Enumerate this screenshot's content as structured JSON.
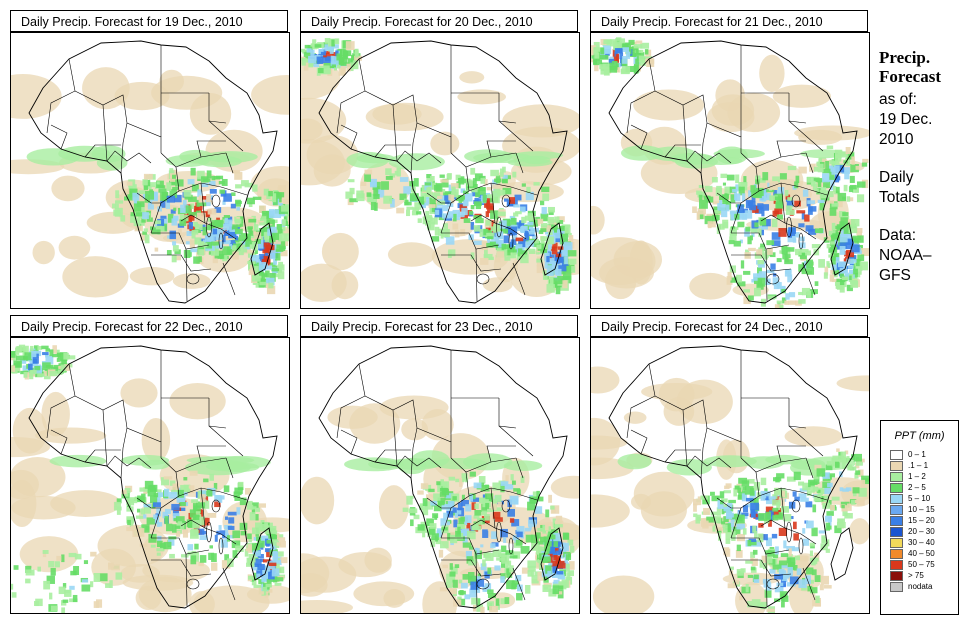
{
  "panels": [
    {
      "title": "Daily Precip. Forecast for  19 Dec., 2010",
      "rain": [
        "center",
        "madagascar",
        "eastcoast",
        "tanzania"
      ]
    },
    {
      "title": "Daily Precip. Forecast for  20 Dec., 2010",
      "rain": [
        "center",
        "west",
        "madagascar",
        "tanzania",
        "northwest"
      ]
    },
    {
      "title": "Daily Precip. Forecast for  21 Dec., 2010",
      "rain": [
        "center",
        "east",
        "madagascar",
        "south",
        "northwest"
      ]
    },
    {
      "title": "Daily Precip. Forecast for  22 Dec., 2010",
      "rain": [
        "center",
        "madagascar",
        "southwest",
        "northwest"
      ]
    },
    {
      "title": "Daily Precip. Forecast for  23 Dec., 2010",
      "rain": [
        "center",
        "south",
        "madagascar"
      ]
    },
    {
      "title": "Daily Precip. Forecast for  24 Dec., 2010",
      "rain": [
        "center",
        "south",
        "east"
      ]
    }
  ],
  "sidebar": {
    "title_line1": "Precip.",
    "title_line2": "Forecast",
    "asof": "as of:",
    "date1": "19 Dec.",
    "date2": "2010",
    "daily1": "Daily",
    "daily2": "Totals",
    "data1": "Data:",
    "data2": "NOAA–",
    "data3": "GFS"
  },
  "legend": {
    "title": "PPT (mm)",
    "classes": [
      {
        "label": "0 – 1",
        "color": "#ffffff"
      },
      {
        "label": ".1 – 1",
        "color": "#ead7b3"
      },
      {
        "label": "1 – 2",
        "color": "#a8eea0"
      },
      {
        "label": "2 – 5",
        "color": "#66dd66"
      },
      {
        "label": "5 – 10",
        "color": "#9ad7f5"
      },
      {
        "label": "10 – 15",
        "color": "#6aa8f0"
      },
      {
        "label": "15 – 20",
        "color": "#3a7fe6"
      },
      {
        "label": "20 – 30",
        "color": "#1b55d0"
      },
      {
        "label": "30 – 40",
        "color": "#f2d95a"
      },
      {
        "label": "40 – 50",
        "color": "#f08a2c"
      },
      {
        "label": "50 – 75",
        "color": "#d9381c"
      },
      {
        "label": "> 75",
        "color": "#8a0f0a"
      },
      {
        "label": "nodata",
        "color": "#c8c8c8"
      }
    ]
  }
}
